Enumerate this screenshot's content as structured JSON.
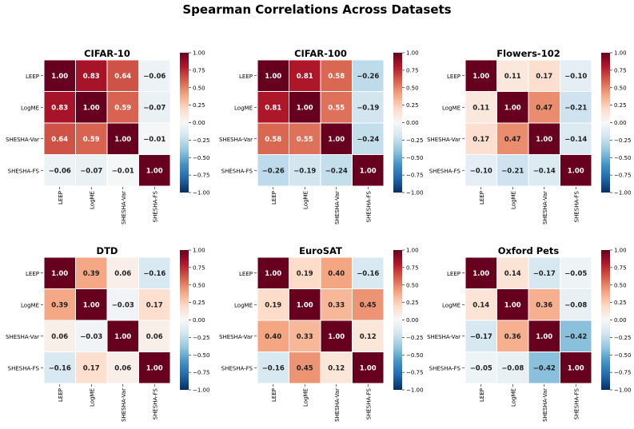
{
  "figure": {
    "title": "Spearman Correlations Across Datasets"
  },
  "colors": {
    "scale": [
      "#053061",
      "#2166ac",
      "#4393c3",
      "#92c5de",
      "#d1e5f0",
      "#f7f7f7",
      "#fddbc7",
      "#f4a582",
      "#d6604d",
      "#b2182b",
      "#67001f"
    ],
    "cell_border": "#ffffff",
    "text_dark": "#222222",
    "text_light": "#ffffff"
  },
  "chart_data": [
    {
      "type": "heatmap",
      "title": "CIFAR-10",
      "row_labels": [
        "LEEP",
        "LogME",
        "SHESHA-Var",
        "SHESHA-FS"
      ],
      "col_labels": [
        "LEEP",
        "LogME",
        "SHESHA-Var",
        "SHESHA-FS"
      ],
      "values": [
        [
          1.0,
          0.83,
          0.64,
          -0.06
        ],
        [
          0.83,
          1.0,
          0.59,
          -0.07
        ],
        [
          0.64,
          0.59,
          1.0,
          -0.01
        ],
        [
          -0.06,
          -0.07,
          -0.01,
          1.0
        ]
      ],
      "vmin": -1.0,
      "vmax": 1.0,
      "colorbar_ticks": [
        "1.00",
        "0.75",
        "0.50",
        "0.25",
        "0.00",
        "−0.25",
        "−0.50",
        "−0.75",
        "−1.00"
      ]
    },
    {
      "type": "heatmap",
      "title": "CIFAR-100",
      "row_labels": [
        "LEEP",
        "LogME",
        "SHESHA-Var",
        "SHESHA-FS"
      ],
      "col_labels": [
        "LEEP",
        "LogME",
        "SHESHA-Var",
        "SHESHA-FS"
      ],
      "values": [
        [
          1.0,
          0.81,
          0.58,
          -0.26
        ],
        [
          0.81,
          1.0,
          0.55,
          -0.19
        ],
        [
          0.58,
          0.55,
          1.0,
          -0.24
        ],
        [
          -0.26,
          -0.19,
          -0.24,
          1.0
        ]
      ],
      "vmin": -1.0,
      "vmax": 1.0,
      "colorbar_ticks": [
        "1.00",
        "0.75",
        "0.50",
        "0.25",
        "0.00",
        "−0.25",
        "−0.50",
        "−0.75",
        "−1.00"
      ]
    },
    {
      "type": "heatmap",
      "title": "Flowers-102",
      "row_labels": [
        "LEEP",
        "LogME",
        "SHESHA-Var",
        "SHESHA-FS"
      ],
      "col_labels": [
        "LEEP",
        "LogME",
        "SHESHA-Var",
        "SHESHA-FS"
      ],
      "values": [
        [
          1.0,
          0.11,
          0.17,
          -0.1
        ],
        [
          0.11,
          1.0,
          0.47,
          -0.21
        ],
        [
          0.17,
          0.47,
          1.0,
          -0.14
        ],
        [
          -0.1,
          -0.21,
          -0.14,
          1.0
        ]
      ],
      "vmin": -1.0,
      "vmax": 1.0,
      "colorbar_ticks": [
        "1.00",
        "0.75",
        "0.50",
        "0.25",
        "0.00",
        "−0.25",
        "−0.50",
        "−0.75",
        "−1.00"
      ]
    },
    {
      "type": "heatmap",
      "title": "DTD",
      "row_labels": [
        "LEEP",
        "LogME",
        "SHESHA-Var",
        "SHESHA-FS"
      ],
      "col_labels": [
        "LEEP",
        "LogME",
        "SHESHA-Var",
        "SHESHA-FS"
      ],
      "values": [
        [
          1.0,
          0.39,
          0.06,
          -0.16
        ],
        [
          0.39,
          1.0,
          -0.03,
          0.17
        ],
        [
          0.06,
          -0.03,
          1.0,
          0.06
        ],
        [
          -0.16,
          0.17,
          0.06,
          1.0
        ]
      ],
      "vmin": -1.0,
      "vmax": 1.0,
      "colorbar_ticks": [
        "1.00",
        "0.75",
        "0.50",
        "0.25",
        "0.00",
        "−0.25",
        "−0.50",
        "−0.75",
        "−1.00"
      ]
    },
    {
      "type": "heatmap",
      "title": "EuroSAT",
      "row_labels": [
        "LEEP",
        "LogME",
        "SHESHA-Var",
        "SHESHA-FS"
      ],
      "col_labels": [
        "LEEP",
        "LogME",
        "SHESHA-Var",
        "SHESHA-FS"
      ],
      "values": [
        [
          1.0,
          0.19,
          0.4,
          -0.16
        ],
        [
          0.19,
          1.0,
          0.33,
          0.45
        ],
        [
          0.4,
          0.33,
          1.0,
          0.12
        ],
        [
          -0.16,
          0.45,
          0.12,
          1.0
        ]
      ],
      "vmin": -1.0,
      "vmax": 1.0,
      "colorbar_ticks": [
        "1.00",
        "0.75",
        "0.50",
        "0.25",
        "0.00",
        "−0.25",
        "−0.50",
        "−0.75",
        "−1.00"
      ]
    },
    {
      "type": "heatmap",
      "title": "Oxford Pets",
      "row_labels": [
        "LEEP",
        "LogME",
        "SHESHA-Var",
        "SHESHA-FS"
      ],
      "col_labels": [
        "LEEP",
        "LogME",
        "SHESHA-Var",
        "SHESHA-FS"
      ],
      "values": [
        [
          1.0,
          0.14,
          -0.17,
          -0.05
        ],
        [
          0.14,
          1.0,
          0.36,
          -0.08
        ],
        [
          -0.17,
          0.36,
          1.0,
          -0.42
        ],
        [
          -0.05,
          -0.08,
          -0.42,
          1.0
        ]
      ],
      "vmin": -1.0,
      "vmax": 1.0,
      "colorbar_ticks": [
        "1.00",
        "0.75",
        "0.50",
        "0.25",
        "0.00",
        "−0.25",
        "−0.50",
        "−0.75",
        "−1.00"
      ]
    }
  ]
}
